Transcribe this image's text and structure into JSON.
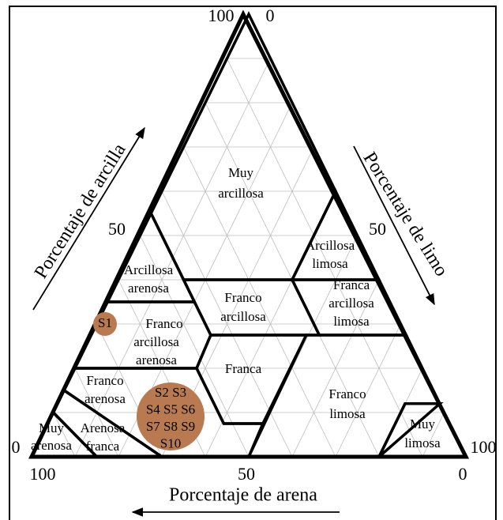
{
  "ticks": {
    "apex_left": "100",
    "apex_right": "0",
    "left_mid": "50",
    "right_mid": "50",
    "left_bottom": "0",
    "right_bottom": "100",
    "bottom_left": "100",
    "bottom_mid": "50",
    "bottom_right": "0"
  },
  "axes": {
    "clay": "Porcentaje de arcilla",
    "silt": "Porcentaje de limo",
    "sand": "Porcentaje de arena"
  },
  "regions": [
    {
      "lines": [
        "Muy",
        "arcillosa"
      ]
    },
    {
      "lines": [
        "Arcillosa",
        "arenosa"
      ]
    },
    {
      "lines": [
        "Arcillosa",
        "limosa"
      ]
    },
    {
      "lines": [
        "Franco",
        "arcillosa"
      ]
    },
    {
      "lines": [
        "Franca",
        "arcillosa",
        "limosa"
      ]
    },
    {
      "lines": [
        "Franco",
        "arcillosa",
        "arenosa"
      ]
    },
    {
      "lines": [
        "Franca"
      ]
    },
    {
      "lines": [
        "Franco",
        "arenosa"
      ]
    },
    {
      "lines": [
        "Franco",
        "limosa"
      ]
    },
    {
      "lines": [
        "Muy",
        "limosa"
      ]
    },
    {
      "lines": [
        "Muy",
        "arenosa"
      ]
    },
    {
      "lines": [
        "Arenosa",
        "franca"
      ]
    }
  ],
  "samples": [
    {
      "lines": [
        "S1"
      ]
    },
    {
      "lines": [
        "S2 S3",
        "S4 S5 S6",
        "S7 S8 S9",
        "S10"
      ]
    }
  ]
}
